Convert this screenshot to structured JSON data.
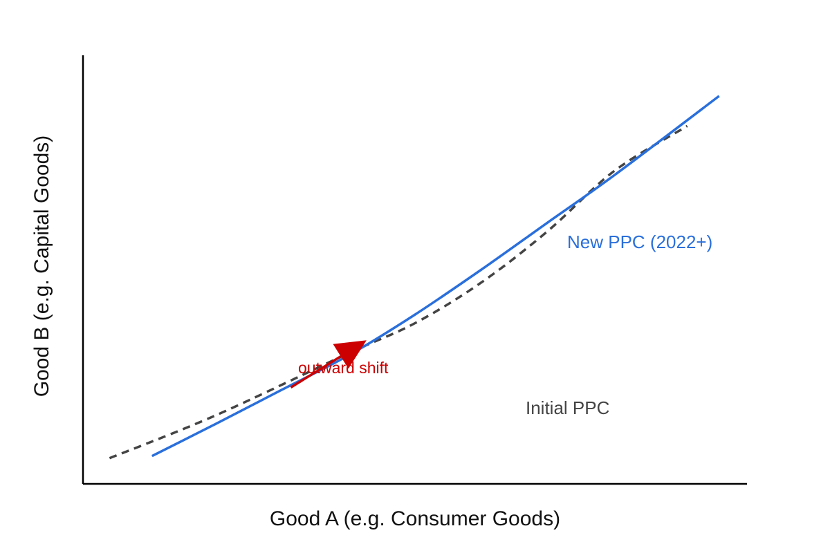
{
  "chart_data": {
    "type": "line",
    "title": "",
    "xlabel": "Good A (e.g. Consumer Goods)",
    "ylabel": "Good B (e.g. Capital Goods)",
    "xlim": [
      0,
      100
    ],
    "ylim": [
      0,
      100
    ],
    "grid": false,
    "series": [
      {
        "name": "Initial PPC",
        "color": "#444444",
        "style": "dashed",
        "x": [
          4,
          20,
          40,
          50,
          60,
          70,
          80,
          91
        ],
        "y": [
          6,
          16,
          30.5,
          37.5,
          47,
          59,
          73,
          83.5
        ]
      },
      {
        "name": "New PPC (2022+)",
        "color": "#2a6fdb",
        "style": "solid",
        "x": [
          10.4,
          20,
          30,
          40,
          50,
          60,
          70,
          80,
          95.8
        ],
        "y": [
          6.5,
          14,
          22,
          30,
          39.5,
          50,
          61,
          72,
          90.5
        ]
      }
    ],
    "annotations": [
      {
        "text": "outward shift",
        "color": "#cc0000",
        "arrow_from": [
          31.3,
          22.5
        ],
        "arrow_to": [
          42.7,
          33.5
        ]
      }
    ]
  }
}
